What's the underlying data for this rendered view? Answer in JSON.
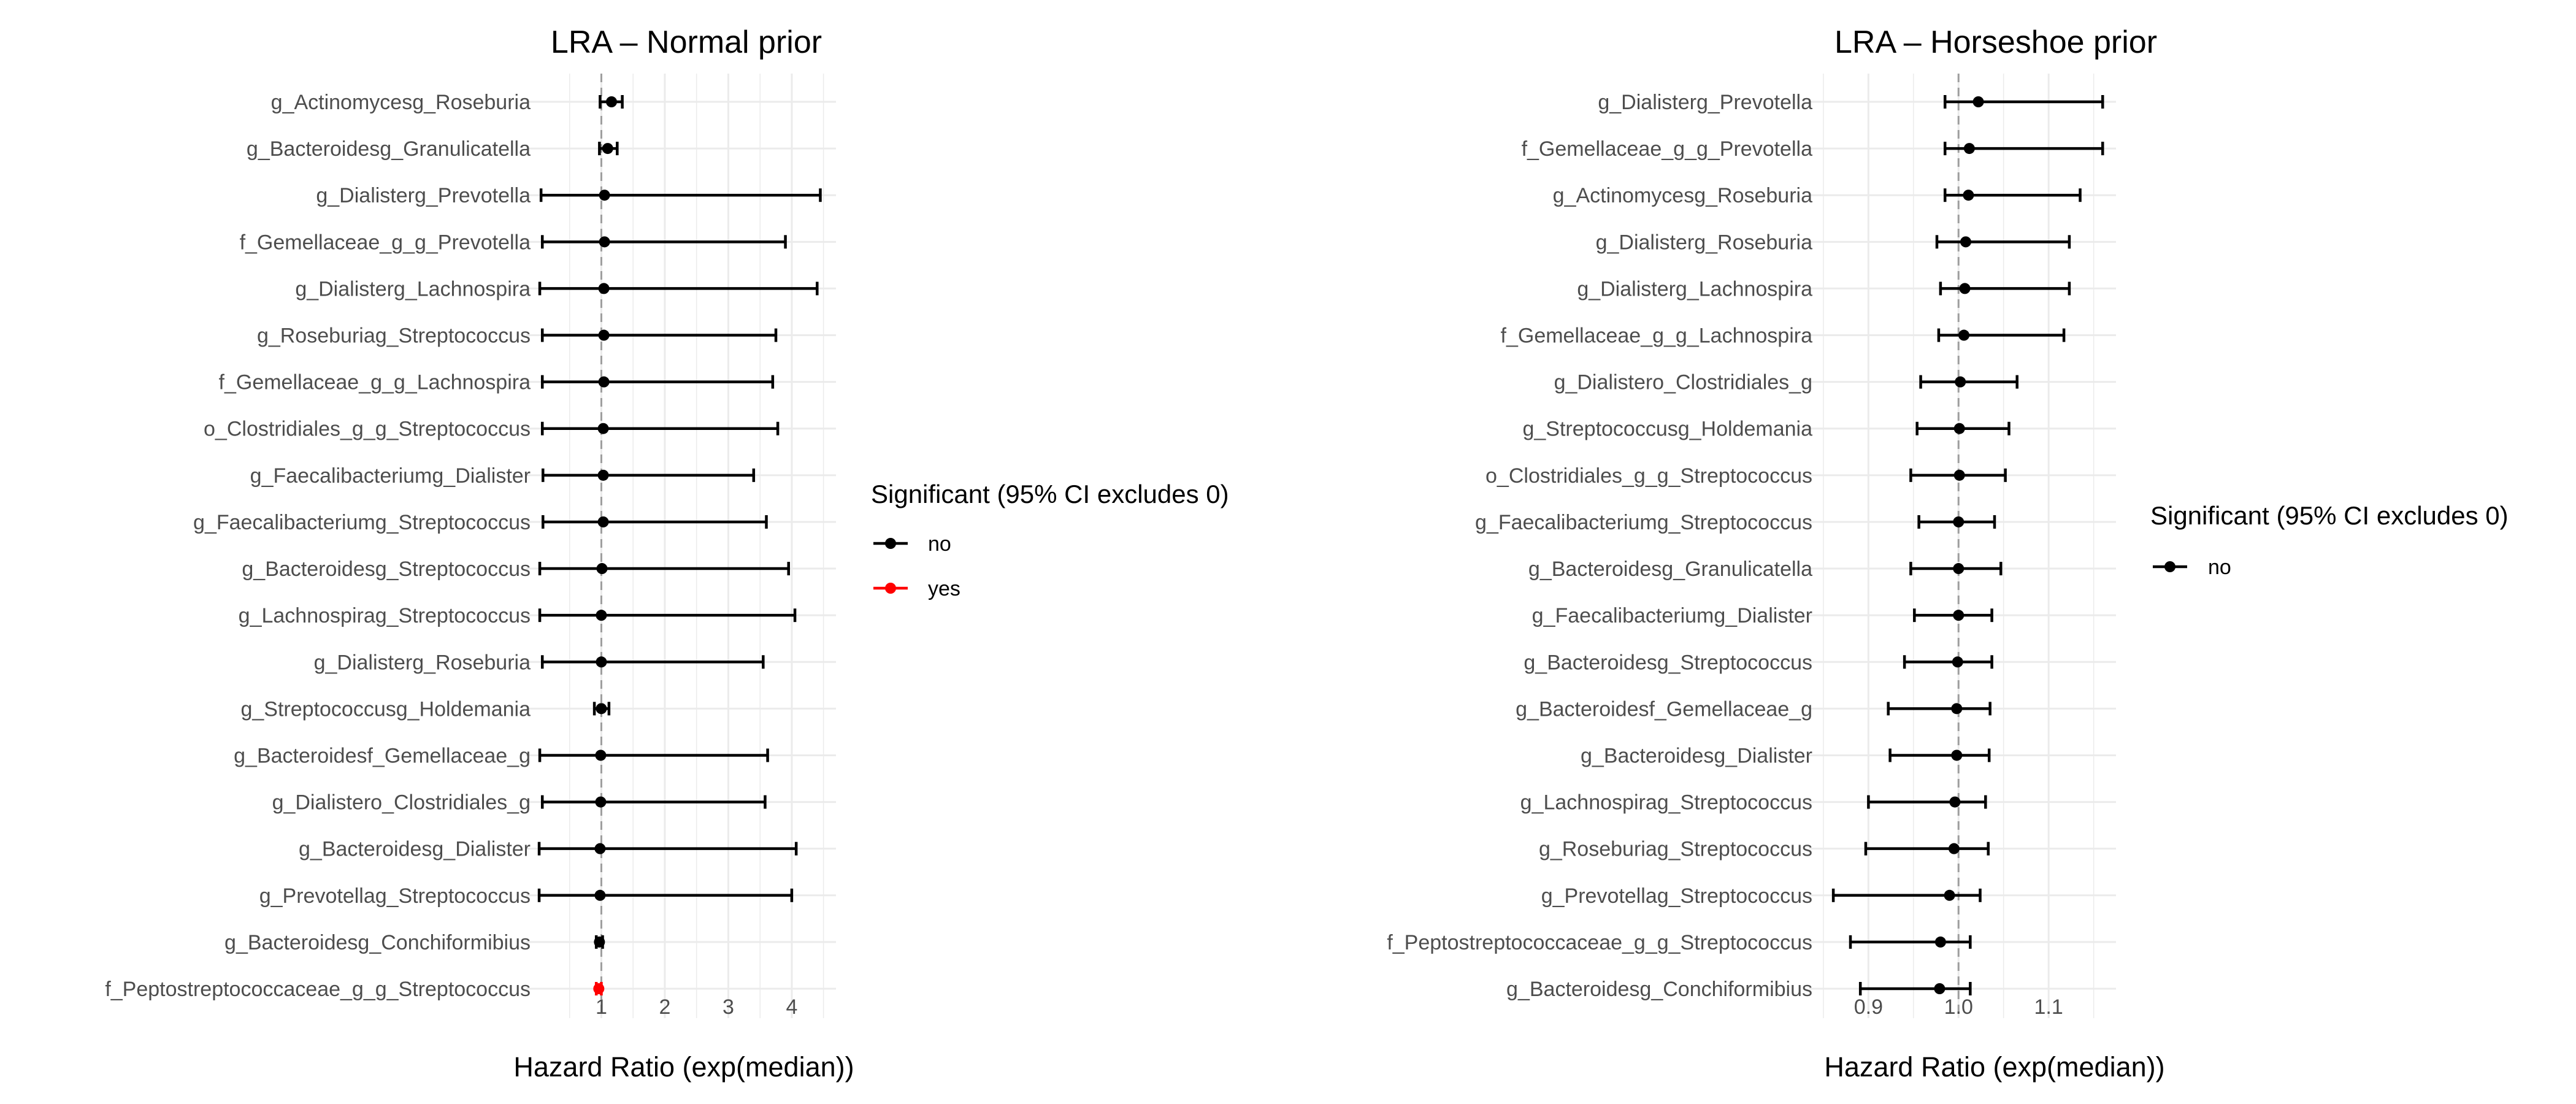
{
  "colors": {
    "no": "#000000",
    "yes": "#ff0000",
    "grid": "#ebebeb",
    "ref_line": "#9e9e9e"
  },
  "chart_data": [
    {
      "type": "forest",
      "title": "LRA – Normal prior",
      "xlabel": "Hazard Ratio (exp(median))",
      "xlim": [
        0.01,
        4.6
      ],
      "x_ticks": [
        1,
        2,
        3,
        4
      ],
      "x_tick_labels": [
        "1",
        "2",
        "3",
        "4"
      ],
      "reference_line": 1,
      "legend": {
        "title": "Significant (95% CI excludes 0)",
        "entries": [
          {
            "label": "no",
            "color": "#000000"
          },
          {
            "label": "yes",
            "color": "#ff0000"
          }
        ]
      },
      "rows": [
        {
          "label": "g_Actinomycesg_Roseburia",
          "est": 1.16,
          "lo": 0.98,
          "hi": 1.33,
          "significant": "no"
        },
        {
          "label": "g_Bacteroidesg_Granulicatella",
          "est": 1.1,
          "lo": 0.97,
          "hi": 1.25,
          "significant": "no"
        },
        {
          "label": "g_Dialisterg_Prevotella",
          "est": 1.05,
          "lo": 0.05,
          "hi": 4.45,
          "significant": "no"
        },
        {
          "label": "f_Gemellaceae_g_g_Prevotella",
          "est": 1.05,
          "lo": 0.07,
          "hi": 3.9,
          "significant": "no"
        },
        {
          "label": "g_Dialisterg_Lachnospira",
          "est": 1.04,
          "lo": 0.03,
          "hi": 4.4,
          "significant": "no"
        },
        {
          "label": "g_Roseburiag_Streptococcus",
          "est": 1.04,
          "lo": 0.07,
          "hi": 3.75,
          "significant": "no"
        },
        {
          "label": "f_Gemellaceae_g_g_Lachnospira",
          "est": 1.04,
          "lo": 0.07,
          "hi": 3.7,
          "significant": "no"
        },
        {
          "label": "o_Clostridiales_g_g_Streptococcus",
          "est": 1.03,
          "lo": 0.07,
          "hi": 3.78,
          "significant": "no"
        },
        {
          "label": "g_Faecalibacteriumg_Dialister",
          "est": 1.03,
          "lo": 0.08,
          "hi": 3.4,
          "significant": "no"
        },
        {
          "label": "g_Faecalibacteriumg_Streptococcus",
          "est": 1.03,
          "lo": 0.08,
          "hi": 3.6,
          "significant": "no"
        },
        {
          "label": "g_Bacteroidesg_Streptococcus",
          "est": 1.01,
          "lo": 0.03,
          "hi": 3.95,
          "significant": "no"
        },
        {
          "label": "g_Lachnospirag_Streptococcus",
          "est": 1.0,
          "lo": 0.03,
          "hi": 4.05,
          "significant": "no"
        },
        {
          "label": "g_Dialisterg_Roseburia",
          "est": 1.0,
          "lo": 0.07,
          "hi": 3.55,
          "significant": "no"
        },
        {
          "label": "g_Streptococcusg_Holdemania",
          "est": 1.0,
          "lo": 0.89,
          "hi": 1.12,
          "significant": "no"
        },
        {
          "label": "g_Bacteroidesf_Gemellaceae_g",
          "est": 0.99,
          "lo": 0.03,
          "hi": 3.62,
          "significant": "no"
        },
        {
          "label": "g_Dialistero_Clostridiales_g",
          "est": 0.99,
          "lo": 0.07,
          "hi": 3.58,
          "significant": "no"
        },
        {
          "label": "g_Bacteroidesg_Dialister",
          "est": 0.98,
          "lo": 0.02,
          "hi": 4.07,
          "significant": "no"
        },
        {
          "label": "g_Prevotellag_Streptococcus",
          "est": 0.98,
          "lo": 0.02,
          "hi": 4.0,
          "significant": "no"
        },
        {
          "label": "g_Bacteroidesg_Conchiformibius",
          "est": 0.97,
          "lo": 0.92,
          "hi": 1.02,
          "significant": "no"
        },
        {
          "label": "f_Peptostreptococcaceae_g_g_Streptococcus",
          "est": 0.96,
          "lo": 0.92,
          "hi": 1.0,
          "significant": "yes"
        }
      ]
    },
    {
      "type": "forest",
      "title": "LRA – Horseshoe prior",
      "xlabel": "Hazard Ratio (exp(median))",
      "xlim": [
        0.848,
        1.168
      ],
      "x_ticks": [
        0.9,
        1.0,
        1.1
      ],
      "x_tick_labels": [
        "0.9",
        "1.0",
        "1.1"
      ],
      "reference_line": 1,
      "legend": {
        "title": "Significant (95% CI excludes 0)",
        "entries": [
          {
            "label": "no",
            "color": "#000000"
          }
        ]
      },
      "rows": [
        {
          "label": "g_Dialisterg_Prevotella",
          "est": 1.022,
          "lo": 0.985,
          "hi": 1.16,
          "significant": "no"
        },
        {
          "label": "f_Gemellaceae_g_g_Prevotella",
          "est": 1.012,
          "lo": 0.985,
          "hi": 1.16,
          "significant": "no"
        },
        {
          "label": "g_Actinomycesg_Roseburia",
          "est": 1.011,
          "lo": 0.985,
          "hi": 1.135,
          "significant": "no"
        },
        {
          "label": "g_Dialisterg_Roseburia",
          "est": 1.008,
          "lo": 0.976,
          "hi": 1.123,
          "significant": "no"
        },
        {
          "label": "g_Dialisterg_Lachnospira",
          "est": 1.007,
          "lo": 0.98,
          "hi": 1.123,
          "significant": "no"
        },
        {
          "label": "f_Gemellaceae_g_g_Lachnospira",
          "est": 1.006,
          "lo": 0.978,
          "hi": 1.117,
          "significant": "no"
        },
        {
          "label": "g_Dialistero_Clostridiales_g",
          "est": 1.002,
          "lo": 0.958,
          "hi": 1.065,
          "significant": "no"
        },
        {
          "label": "g_Streptococcusg_Holdemania",
          "est": 1.001,
          "lo": 0.954,
          "hi": 1.056,
          "significant": "no"
        },
        {
          "label": "o_Clostridiales_g_g_Streptococcus",
          "est": 1.001,
          "lo": 0.947,
          "hi": 1.052,
          "significant": "no"
        },
        {
          "label": "g_Faecalibacteriumg_Streptococcus",
          "est": 1.0,
          "lo": 0.956,
          "hi": 1.04,
          "significant": "no"
        },
        {
          "label": "g_Bacteroidesg_Granulicatella",
          "est": 1.0,
          "lo": 0.947,
          "hi": 1.047,
          "significant": "no"
        },
        {
          "label": "g_Faecalibacteriumg_Dialister",
          "est": 1.0,
          "lo": 0.951,
          "hi": 1.037,
          "significant": "no"
        },
        {
          "label": "g_Bacteroidesg_Streptococcus",
          "est": 0.999,
          "lo": 0.94,
          "hi": 1.037,
          "significant": "no"
        },
        {
          "label": "g_Bacteroidesf_Gemellaceae_g",
          "est": 0.998,
          "lo": 0.922,
          "hi": 1.035,
          "significant": "no"
        },
        {
          "label": "g_Bacteroidesg_Dialister",
          "est": 0.998,
          "lo": 0.924,
          "hi": 1.034,
          "significant": "no"
        },
        {
          "label": "g_Lachnospirag_Streptococcus",
          "est": 0.996,
          "lo": 0.9,
          "hi": 1.03,
          "significant": "no"
        },
        {
          "label": "g_Roseburiag_Streptococcus",
          "est": 0.995,
          "lo": 0.897,
          "hi": 1.033,
          "significant": "no"
        },
        {
          "label": "g_Prevotellag_Streptococcus",
          "est": 0.99,
          "lo": 0.861,
          "hi": 1.024,
          "significant": "no"
        },
        {
          "label": "f_Peptostreptococcaceae_g_g_Streptococcus",
          "est": 0.98,
          "lo": 0.88,
          "hi": 1.013,
          "significant": "no"
        },
        {
          "label": "g_Bacteroidesg_Conchiformibius",
          "est": 0.979,
          "lo": 0.891,
          "hi": 1.013,
          "significant": "no"
        }
      ]
    }
  ]
}
